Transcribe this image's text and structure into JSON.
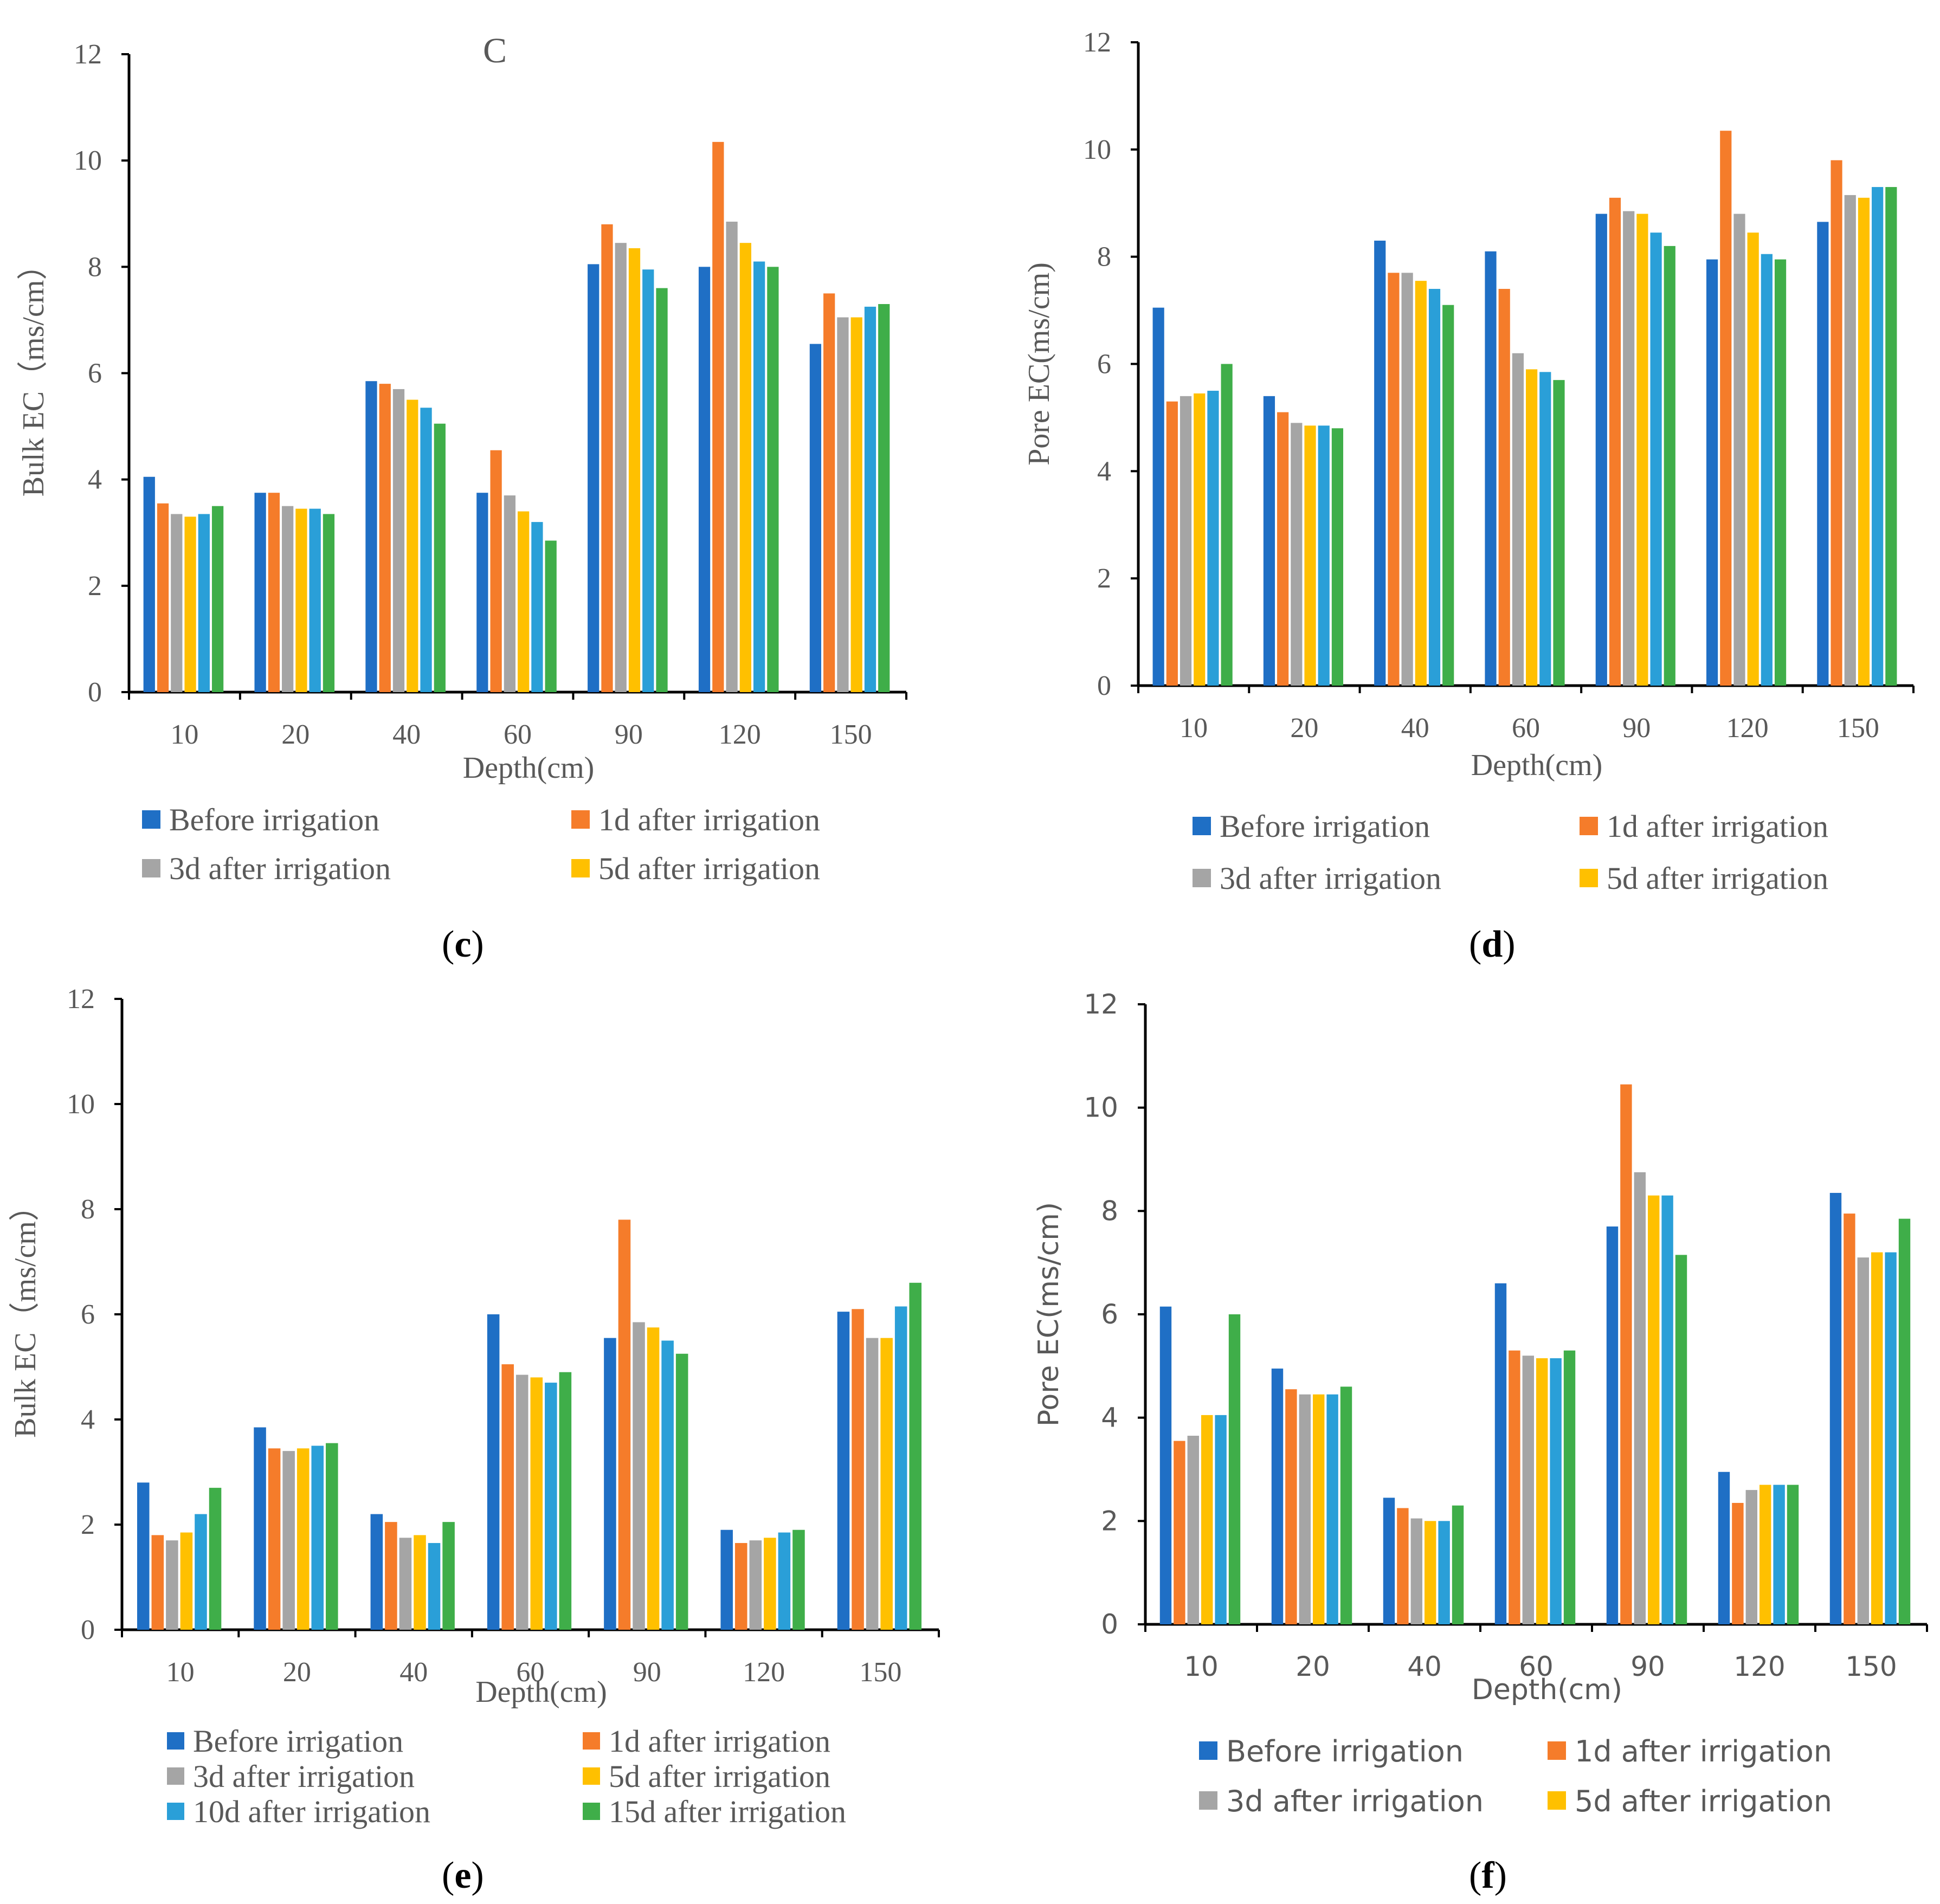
{
  "colors": {
    "Before irrigation": "#1f6fc5",
    "1d after irrigation": "#f57c2a",
    "3d after irrigation": "#a5a5a5",
    "5d after irrigation": "#ffc000",
    "10d after irrigation": "#2a9fd8",
    "15d after irrigation": "#3fae49",
    "axis": "#000000",
    "text": "#595959"
  },
  "chart_data": [
    {
      "id": "c",
      "type": "bar",
      "title": "C",
      "panel_label": "c",
      "xlabel": "Depth(cm)",
      "ylabel": "Bulk EC（ms/cm）",
      "ylim": [
        0,
        12
      ],
      "yticks": [
        "0",
        "2",
        "4",
        "6",
        "8",
        "10",
        "12"
      ],
      "categories": [
        "10",
        "20",
        "40",
        "60",
        "90",
        "120",
        "150"
      ],
      "series": [
        {
          "name": "Before irrigation",
          "values": [
            4.05,
            3.75,
            5.85,
            3.75,
            8.05,
            8.0,
            6.55
          ]
        },
        {
          "name": "1d after irrigation",
          "values": [
            3.55,
            3.75,
            5.8,
            4.55,
            8.8,
            10.35,
            7.5
          ]
        },
        {
          "name": "3d after irrigation",
          "values": [
            3.35,
            3.5,
            5.7,
            3.7,
            8.45,
            8.85,
            7.05
          ]
        },
        {
          "name": "5d after irrigation",
          "values": [
            3.3,
            3.45,
            5.5,
            3.4,
            8.35,
            8.45,
            7.05
          ]
        },
        {
          "name": "10d after irrigation",
          "values": [
            3.35,
            3.45,
            5.35,
            3.2,
            7.95,
            8.1,
            7.25
          ]
        },
        {
          "name": "15d after irrigation",
          "values": [
            3.5,
            3.35,
            5.05,
            2.85,
            7.6,
            8.0,
            7.3
          ]
        }
      ],
      "legend_entries": [
        "Before irrigation",
        "1d after irrigation",
        "3d after irrigation",
        "5d after irrigation"
      ]
    },
    {
      "id": "d",
      "type": "bar",
      "title": "",
      "panel_label": "d",
      "xlabel": "Depth(cm)",
      "ylabel": "Pore EC(ms/cm)",
      "ylim": [
        0,
        12
      ],
      "yticks": [
        "0",
        "2",
        "4",
        "6",
        "8",
        "10",
        "12"
      ],
      "categories": [
        "10",
        "20",
        "40",
        "60",
        "90",
        "120",
        "150"
      ],
      "series": [
        {
          "name": "Before irrigation",
          "values": [
            7.05,
            5.4,
            8.3,
            8.1,
            8.8,
            7.95,
            8.65
          ]
        },
        {
          "name": "1d after irrigation",
          "values": [
            5.3,
            5.1,
            7.7,
            7.4,
            9.1,
            10.35,
            9.8
          ]
        },
        {
          "name": "3d after irrigation",
          "values": [
            5.4,
            4.9,
            7.7,
            6.2,
            8.85,
            8.8,
            9.15
          ]
        },
        {
          "name": "5d after irrigation",
          "values": [
            5.45,
            4.85,
            7.55,
            5.9,
            8.8,
            8.45,
            9.1
          ]
        },
        {
          "name": "10d after irrigation",
          "values": [
            5.5,
            4.85,
            7.4,
            5.85,
            8.45,
            8.05,
            9.3
          ]
        },
        {
          "name": "15d after irrigation",
          "values": [
            6.0,
            4.8,
            7.1,
            5.7,
            8.2,
            7.95,
            9.3
          ]
        }
      ],
      "legend_entries": [
        "Before irrigation",
        "1d after irrigation",
        "3d after irrigation",
        "5d after irrigation"
      ]
    },
    {
      "id": "e",
      "type": "bar",
      "title": "",
      "panel_label": "e",
      "xlabel": "Depth(cm)",
      "ylabel": "Bulk EC（ms/cm）",
      "ylim": [
        0,
        12
      ],
      "yticks": [
        "0",
        "2",
        "4",
        "6",
        "8",
        "10",
        "12"
      ],
      "categories": [
        "10",
        "20",
        "40",
        "60",
        "90",
        "120",
        "150"
      ],
      "series": [
        {
          "name": "Before irrigation",
          "values": [
            2.8,
            3.85,
            2.2,
            6.0,
            5.55,
            1.9,
            6.05
          ]
        },
        {
          "name": "1d after irrigation",
          "values": [
            1.8,
            3.45,
            2.05,
            5.05,
            7.8,
            1.65,
            6.1
          ]
        },
        {
          "name": "3d after irrigation",
          "values": [
            1.7,
            3.4,
            1.75,
            4.85,
            5.85,
            1.7,
            5.55
          ]
        },
        {
          "name": "5d after irrigation",
          "values": [
            1.85,
            3.45,
            1.8,
            4.8,
            5.75,
            1.75,
            5.55
          ]
        },
        {
          "name": "10d after irrigation",
          "values": [
            2.2,
            3.5,
            1.65,
            4.7,
            5.5,
            1.85,
            6.15
          ]
        },
        {
          "name": "15d after irrigation",
          "values": [
            2.7,
            3.55,
            2.05,
            4.9,
            5.25,
            1.9,
            6.6
          ]
        }
      ],
      "legend_entries": [
        "Before irrigation",
        "1d after irrigation",
        "3d after irrigation",
        "5d after irrigation",
        "10d after irrigation",
        "15d after irrigation"
      ]
    },
    {
      "id": "f",
      "type": "bar",
      "title": "",
      "panel_label": "f",
      "xlabel": "Depth(cm)",
      "ylabel": "Pore EC(ms/cm)",
      "ylim": [
        0,
        12
      ],
      "yticks": [
        "0",
        "2",
        "4",
        "6",
        "8",
        "10",
        "12"
      ],
      "categories": [
        "10",
        "20",
        "40",
        "60",
        "90",
        "120",
        "150"
      ],
      "series": [
        {
          "name": "Before irrigation",
          "values": [
            6.15,
            4.95,
            2.45,
            6.6,
            7.7,
            2.95,
            8.35
          ]
        },
        {
          "name": "1d after irrigation",
          "values": [
            3.55,
            4.55,
            2.25,
            5.3,
            10.45,
            2.35,
            7.95
          ]
        },
        {
          "name": "3d after irrigation",
          "values": [
            3.65,
            4.45,
            2.05,
            5.2,
            8.75,
            2.6,
            7.1
          ]
        },
        {
          "name": "5d after irrigation",
          "values": [
            4.05,
            4.45,
            2.0,
            5.15,
            8.3,
            2.7,
            7.2
          ]
        },
        {
          "name": "10d after irrigation",
          "values": [
            4.05,
            4.45,
            2.0,
            5.15,
            8.3,
            2.7,
            7.2
          ]
        },
        {
          "name": "15d after irrigation",
          "values": [
            6.0,
            4.6,
            2.3,
            5.3,
            7.15,
            2.7,
            7.85
          ]
        }
      ],
      "legend_entries": [
        "Before irrigation",
        "1d after irrigation",
        "3d after irrigation",
        "5d after irrigation"
      ]
    }
  ]
}
